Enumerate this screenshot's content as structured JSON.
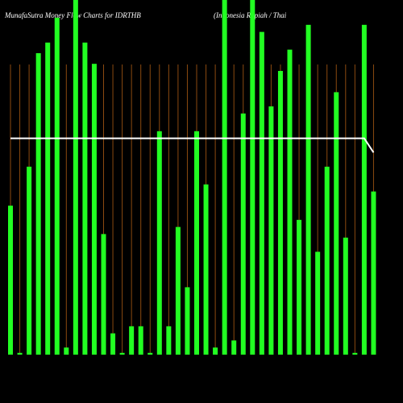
{
  "chart_data": {
    "type": "bar",
    "title": "MunafaSutra  Money Flow  Charts for IDRTHB",
    "subtitle": "(Indonesia  Rupiah / Thai",
    "categories": [
      null,
      null,
      null,
      null,
      null,
      null,
      null,
      null,
      null,
      null,
      null,
      null,
      null,
      null,
      null,
      null,
      null,
      null,
      null,
      null,
      null,
      null,
      null,
      null,
      null,
      null,
      null,
      null,
      null,
      null,
      null,
      null,
      null,
      null,
      null,
      null,
      null,
      null,
      null,
      null
    ],
    "series": [
      {
        "type": "bar",
        "color": "#22ff22",
        "values": [
          42,
          0.5,
          53,
          85,
          88,
          95,
          2,
          100,
          88,
          82,
          34,
          6,
          0.5,
          8,
          8,
          0.5,
          63,
          8,
          36,
          19,
          63,
          48,
          2,
          100,
          4,
          68,
          100,
          91,
          70,
          80,
          86,
          38,
          93,
          29,
          53,
          74,
          33,
          0.5,
          93,
          46
        ]
      },
      {
        "type": "line",
        "color": "#ffffff",
        "values": [
          61,
          61,
          61,
          61,
          61,
          61,
          61,
          61,
          61,
          61,
          61,
          61,
          61,
          61,
          61,
          61,
          61,
          61,
          61,
          61,
          61,
          61,
          61,
          61,
          61,
          61,
          61,
          61,
          61,
          61,
          61,
          61,
          61,
          61,
          61,
          61,
          61,
          61,
          61,
          57
        ]
      }
    ],
    "ylim": [
      0,
      100
    ],
    "grid": true,
    "grid_color": "#8b4a10"
  }
}
